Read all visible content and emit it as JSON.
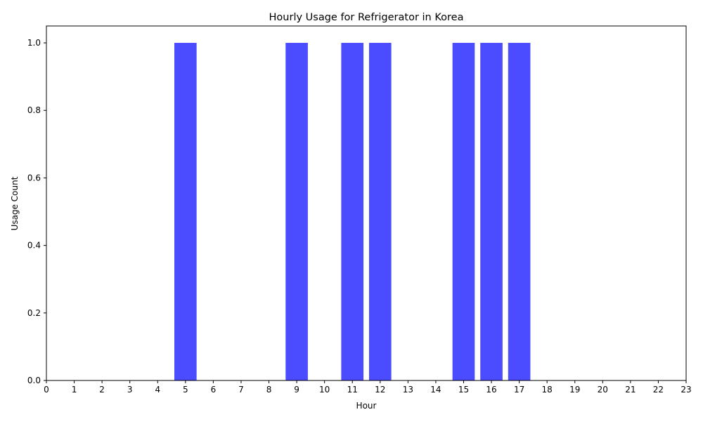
{
  "chart_data": {
    "type": "bar",
    "title": "Hourly Usage for Refrigerator in Korea",
    "xlabel": "Hour",
    "ylabel": "Usage Count",
    "categories": [
      0,
      1,
      2,
      3,
      4,
      5,
      6,
      7,
      8,
      9,
      10,
      11,
      12,
      13,
      14,
      15,
      16,
      17,
      18,
      19,
      20,
      21,
      22,
      23
    ],
    "values": [
      0,
      0,
      0,
      0,
      0,
      1,
      0,
      0,
      0,
      1,
      0,
      1,
      1,
      0,
      0,
      1,
      1,
      1,
      0,
      0,
      0,
      0,
      0,
      0
    ],
    "xlim": [
      0,
      23
    ],
    "ylim": [
      0,
      1.05
    ],
    "yticks": [
      "0.0",
      "0.2",
      "0.4",
      "0.6",
      "0.8",
      "1.0"
    ],
    "bar_color": "#4b4bff",
    "grid": false,
    "legend": "none"
  }
}
